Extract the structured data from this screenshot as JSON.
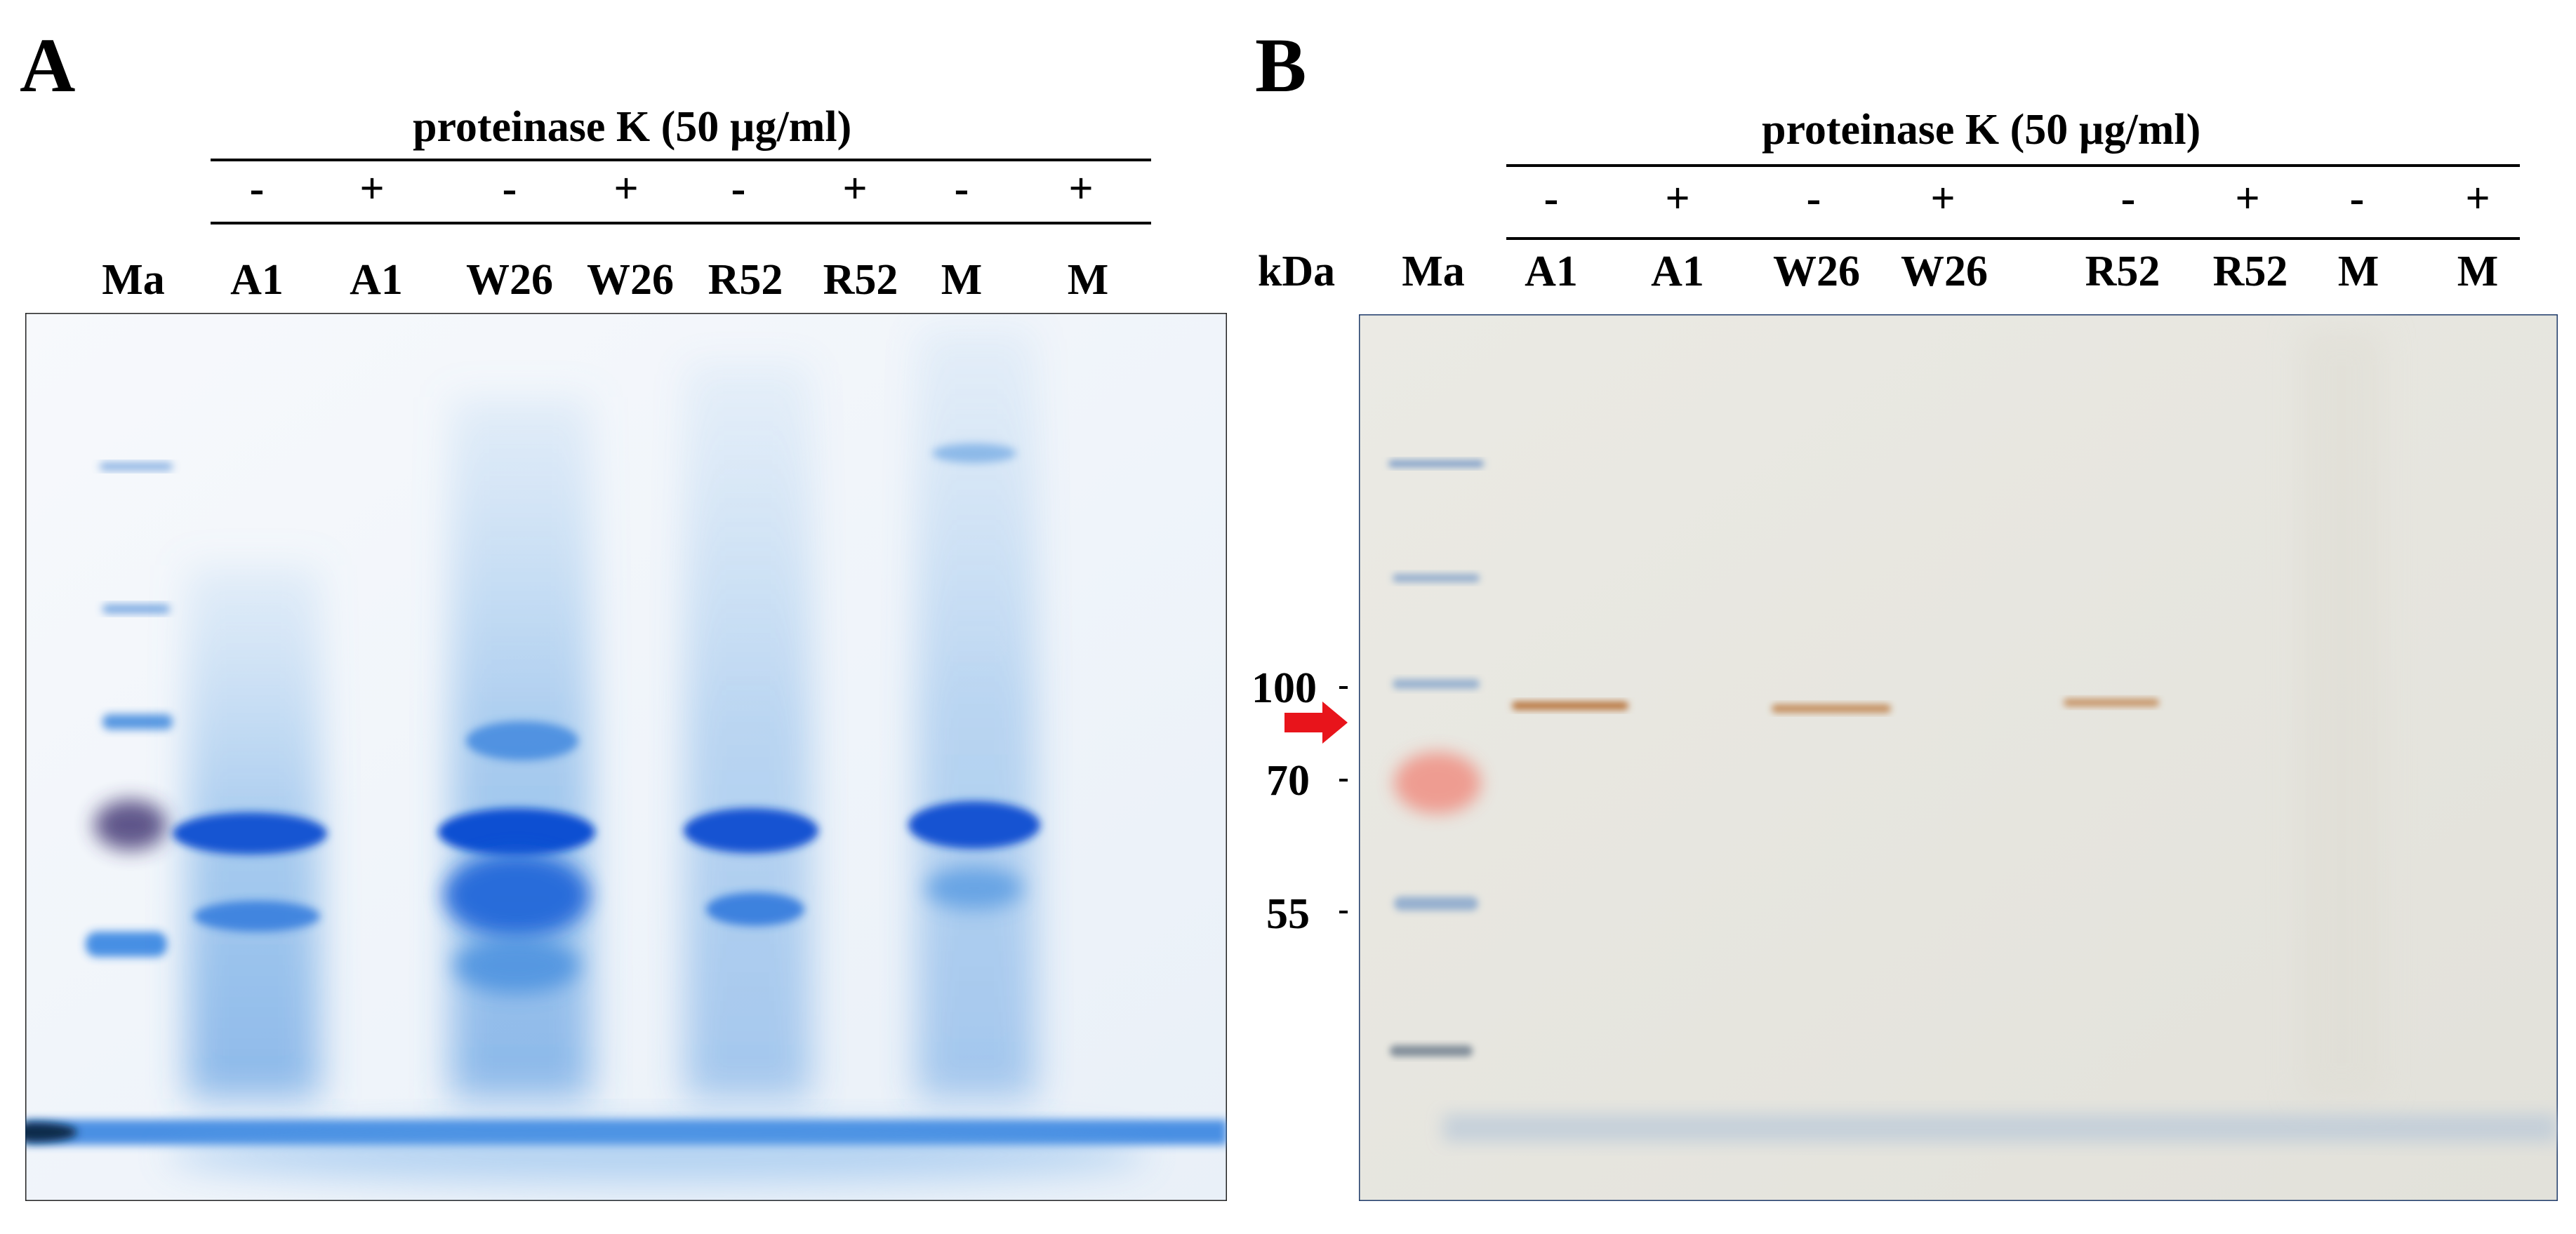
{
  "panels": [
    {
      "letter": "A",
      "header": "proteinase K (50 µg/ml)",
      "signs": [
        "-",
        "+",
        "-",
        "+",
        "-",
        "+",
        "-",
        "+"
      ],
      "lanes": [
        "Ma",
        "A1",
        "A1",
        "W26",
        "W26",
        "R52",
        "R52",
        "M",
        "M"
      ]
    },
    {
      "letter": "B",
      "header": "proteinase K (50 µg/ml)",
      "unit": "kDa",
      "signs": [
        "-",
        "+",
        "-",
        "+",
        "-",
        "+",
        "-",
        "+"
      ],
      "lanes": [
        "Ma",
        "A1",
        "A1",
        "W26",
        "W26",
        "R52",
        "R52",
        "M",
        "M"
      ],
      "markers": [
        "100",
        "70",
        "55"
      ]
    }
  ],
  "colors": {
    "coomassie_blue": "#1a56d6",
    "gel_background": "#eef3f9",
    "membrane_background": "#e7e6e0",
    "western_band": "#b8743d",
    "arrow": "#e8141b"
  }
}
